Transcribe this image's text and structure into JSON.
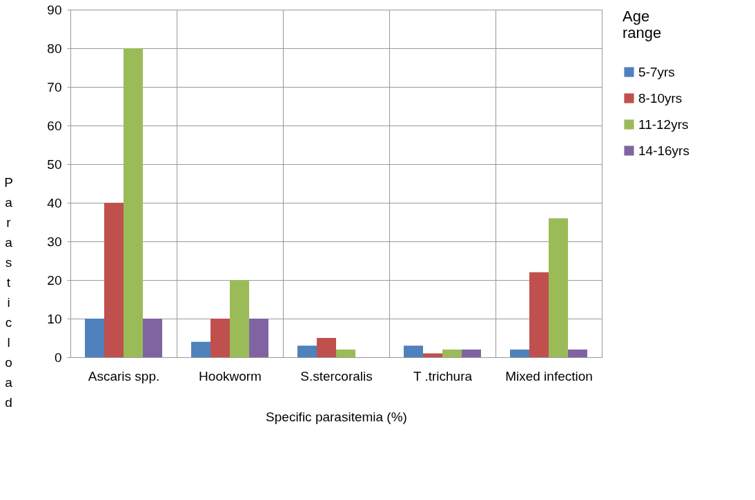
{
  "chart_data": {
    "type": "bar",
    "xlabel": "Specific parasitemia (%)",
    "ylabel": "Parastic load",
    "legend_title": "Age range",
    "categories": [
      "Ascaris spp.",
      "Hookworm",
      "S.stercoralis",
      "T .trichura",
      "Mixed infection"
    ],
    "series": [
      {
        "name": "5-7yrs",
        "color": "#4f81bd",
        "values": [
          10,
          4,
          3,
          3,
          2
        ]
      },
      {
        "name": "8-10yrs",
        "color": "#c0504d",
        "values": [
          40,
          10,
          5,
          1,
          22
        ]
      },
      {
        "name": "11-12yrs",
        "color": "#9bbb59",
        "values": [
          80,
          20,
          2,
          2,
          36
        ]
      },
      {
        "name": "14-16yrs",
        "color": "#8064a2",
        "values": [
          10,
          10,
          0,
          2,
          2
        ]
      }
    ],
    "ylim": [
      0,
      90
    ],
    "yticks": [
      0,
      10,
      20,
      30,
      40,
      50,
      60,
      70,
      80,
      90
    ],
    "grid": "y",
    "legend": "right"
  }
}
